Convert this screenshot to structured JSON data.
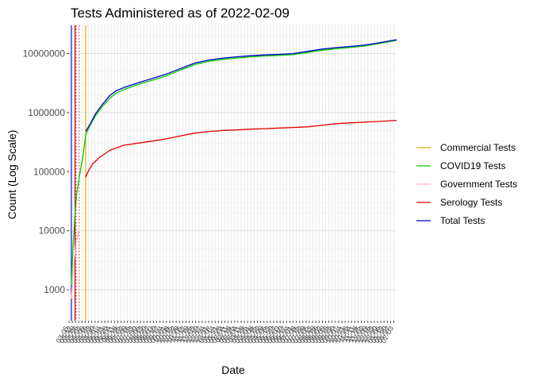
{
  "chart_data": {
    "type": "line",
    "title": "Tests Administered as of 2022-02-09",
    "xlabel": "Date",
    "ylabel": "Count (Log Scale)",
    "y_scale": "log10",
    "ylim": [
      300,
      30000000
    ],
    "yticks": [
      {
        "value": 1000,
        "label": "1000"
      },
      {
        "value": 10000,
        "label": "10000"
      },
      {
        "value": 100000,
        "label": "100000"
      },
      {
        "value": 1000000,
        "label": "1000000"
      },
      {
        "value": 10000000,
        "label": "10000000"
      }
    ],
    "xlim": [
      "2020-03-05",
      "2022-02-09"
    ],
    "x_tick_label_angle": -60,
    "grid": true,
    "legend_position": "right",
    "vlines": [
      {
        "date": "2020-03-10",
        "color": "#0000cc",
        "linetype": "solid"
      },
      {
        "date": "2020-03-18",
        "color": "#b20000",
        "linetype": "solid"
      },
      {
        "date": "2020-03-20",
        "color": "#d00000",
        "linetype": "dotted"
      },
      {
        "date": "2020-03-27",
        "color": "#ff3333",
        "linetype": "dotted"
      },
      {
        "date": "2020-04-10",
        "color": "#e6a800",
        "linetype": "solid"
      }
    ],
    "series": [
      {
        "name": "Commercial Tests",
        "color": "#e6a800",
        "points": []
      },
      {
        "name": "COVID19 Tests",
        "color": "#00cc00",
        "points": [
          [
            "2020-03-10",
            1200
          ],
          [
            "2020-03-14",
            6000
          ],
          [
            "2020-03-18",
            20000
          ],
          [
            "2020-03-22",
            45000
          ],
          [
            "2020-03-28",
            90000
          ],
          [
            "2020-04-04",
            180000
          ],
          [
            "2020-04-10",
            420000
          ],
          [
            "2020-04-20",
            620000
          ],
          [
            "2020-05-01",
            880000
          ],
          [
            "2020-05-15",
            1250000
          ],
          [
            "2020-06-01",
            1750000
          ],
          [
            "2020-06-15",
            2150000
          ],
          [
            "2020-07-01",
            2450000
          ],
          [
            "2020-08-01",
            3000000
          ],
          [
            "2020-09-01",
            3550000
          ],
          [
            "2020-10-01",
            4200000
          ],
          [
            "2020-11-01",
            5300000
          ],
          [
            "2020-12-01",
            6500000
          ],
          [
            "2021-01-01",
            7400000
          ],
          [
            "2021-02-01",
            8000000
          ],
          [
            "2021-03-01",
            8400000
          ],
          [
            "2021-04-01",
            8800000
          ],
          [
            "2021-05-01",
            9100000
          ],
          [
            "2021-06-01",
            9300000
          ],
          [
            "2021-07-01",
            9600000
          ],
          [
            "2021-08-01",
            10400000
          ],
          [
            "2021-09-01",
            11400000
          ],
          [
            "2021-10-01",
            12100000
          ],
          [
            "2021-11-01",
            12700000
          ],
          [
            "2021-12-01",
            13400000
          ],
          [
            "2022-01-01",
            14700000
          ],
          [
            "2022-02-09",
            16700000
          ]
        ]
      },
      {
        "name": "Government Tests",
        "color": "#ffb6c1",
        "points": [
          [
            "2020-03-10",
            700
          ],
          [
            "2020-03-15",
            2500
          ],
          [
            "2020-03-20",
            6000
          ],
          [
            "2020-03-27",
            11000
          ]
        ]
      },
      {
        "name": "Serology Tests",
        "color": "#e00000",
        "points": [
          [
            "2020-04-10",
            80000
          ],
          [
            "2020-04-15",
            100000
          ],
          [
            "2020-04-25",
            135000
          ],
          [
            "2020-05-10",
            175000
          ],
          [
            "2020-06-01",
            230000
          ],
          [
            "2020-07-01",
            280000
          ],
          [
            "2020-08-01",
            305000
          ],
          [
            "2020-09-01",
            330000
          ],
          [
            "2020-10-01",
            360000
          ],
          [
            "2020-11-01",
            405000
          ],
          [
            "2020-12-01",
            450000
          ],
          [
            "2021-01-01",
            480000
          ],
          [
            "2021-02-01",
            500000
          ],
          [
            "2021-03-01",
            510000
          ],
          [
            "2021-04-01",
            525000
          ],
          [
            "2021-05-01",
            535000
          ],
          [
            "2021-06-01",
            548000
          ],
          [
            "2021-07-01",
            560000
          ],
          [
            "2021-08-01",
            575000
          ],
          [
            "2021-09-01",
            610000
          ],
          [
            "2021-10-01",
            650000
          ],
          [
            "2021-11-01",
            670000
          ],
          [
            "2021-12-01",
            690000
          ],
          [
            "2022-01-01",
            710000
          ],
          [
            "2022-02-09",
            740000
          ]
        ]
      },
      {
        "name": "Total Tests",
        "color": "#0000cc",
        "points": [
          [
            "2020-04-10",
            480000
          ],
          [
            "2020-04-20",
            650000
          ],
          [
            "2020-05-01",
            950000
          ],
          [
            "2020-05-15",
            1350000
          ],
          [
            "2020-06-01",
            1950000
          ],
          [
            "2020-06-15",
            2350000
          ],
          [
            "2020-07-01",
            2650000
          ],
          [
            "2020-08-01",
            3200000
          ],
          [
            "2020-09-01",
            3800000
          ],
          [
            "2020-10-01",
            4500000
          ],
          [
            "2020-11-01",
            5600000
          ],
          [
            "2020-12-01",
            6900000
          ],
          [
            "2021-01-01",
            7800000
          ],
          [
            "2021-02-01",
            8400000
          ],
          [
            "2021-03-01",
            8800000
          ],
          [
            "2021-04-01",
            9200000
          ],
          [
            "2021-05-01",
            9500000
          ],
          [
            "2021-06-01",
            9700000
          ],
          [
            "2021-07-01",
            10000000
          ],
          [
            "2021-08-01",
            10900000
          ],
          [
            "2021-09-01",
            11900000
          ],
          [
            "2021-10-01",
            12600000
          ],
          [
            "2021-11-01",
            13200000
          ],
          [
            "2021-12-01",
            13900000
          ],
          [
            "2022-01-01",
            15200000
          ],
          [
            "2022-02-09",
            17200000
          ]
        ]
      }
    ]
  }
}
